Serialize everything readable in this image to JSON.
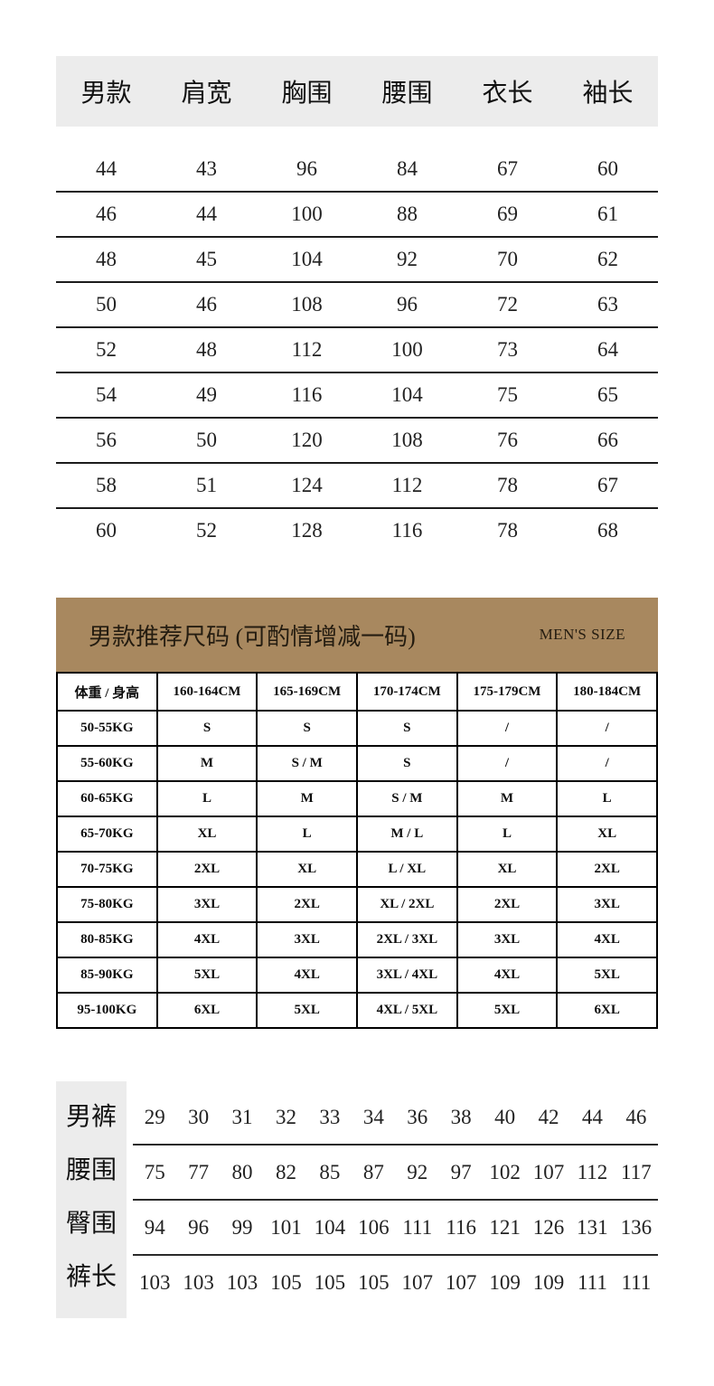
{
  "colors": {
    "page_bg": "#ffffff",
    "table_header_bg": "#ececec",
    "panel_bg": "#a8885f",
    "border": "#000000"
  },
  "top_table": {
    "headers": [
      "男款",
      "肩宽",
      "胸围",
      "腰围",
      "衣长",
      "袖长"
    ],
    "rows": [
      [
        "44",
        "43",
        "96",
        "84",
        "67",
        "60"
      ],
      [
        "46",
        "44",
        "100",
        "88",
        "69",
        "61"
      ],
      [
        "48",
        "45",
        "104",
        "92",
        "70",
        "62"
      ],
      [
        "50",
        "46",
        "108",
        "96",
        "72",
        "63"
      ],
      [
        "52",
        "48",
        "112",
        "100",
        "73",
        "64"
      ],
      [
        "54",
        "49",
        "116",
        "104",
        "75",
        "65"
      ],
      [
        "56",
        "50",
        "120",
        "108",
        "76",
        "66"
      ],
      [
        "58",
        "51",
        "124",
        "112",
        "78",
        "67"
      ],
      [
        "60",
        "52",
        "128",
        "116",
        "78",
        "68"
      ]
    ]
  },
  "size_panel": {
    "title": "男款推荐尺码 (可酌情增减一码)",
    "subtitle": "MEN'S SIZE",
    "table": {
      "headers": [
        "体重 / 身高",
        "160-164CM",
        "165-169CM",
        "170-174CM",
        "175-179CM",
        "180-184CM"
      ],
      "rows": [
        [
          "50-55KG",
          "S",
          "S",
          "S",
          "/",
          "/"
        ],
        [
          "55-60KG",
          "M",
          "S / M",
          "S",
          "/",
          "/"
        ],
        [
          "60-65KG",
          "L",
          "M",
          "S / M",
          "M",
          "L"
        ],
        [
          "65-70KG",
          "XL",
          "L",
          "M / L",
          "L",
          "XL"
        ],
        [
          "70-75KG",
          "2XL",
          "XL",
          "L / XL",
          "XL",
          "2XL"
        ],
        [
          "75-80KG",
          "3XL",
          "2XL",
          "XL / 2XL",
          "2XL",
          "3XL"
        ],
        [
          "80-85KG",
          "4XL",
          "3XL",
          "2XL / 3XL",
          "3XL",
          "4XL"
        ],
        [
          "85-90KG",
          "5XL",
          "4XL",
          "3XL / 4XL",
          "4XL",
          "5XL"
        ],
        [
          "95-100KG",
          "6XL",
          "5XL",
          "4XL / 5XL",
          "5XL",
          "6XL"
        ]
      ]
    }
  },
  "pants_table": {
    "rows": [
      {
        "label": "男裤",
        "values": [
          "29",
          "30",
          "31",
          "32",
          "33",
          "34",
          "36",
          "38",
          "40",
          "42",
          "44",
          "46"
        ]
      },
      {
        "label": "腰围",
        "values": [
          "75",
          "77",
          "80",
          "82",
          "85",
          "87",
          "92",
          "97",
          "102",
          "107",
          "112",
          "117"
        ]
      },
      {
        "label": "臀围",
        "values": [
          "94",
          "96",
          "99",
          "101",
          "104",
          "106",
          "111",
          "116",
          "121",
          "126",
          "131",
          "136"
        ]
      },
      {
        "label": "裤长",
        "values": [
          "103",
          "103",
          "103",
          "105",
          "105",
          "105",
          "107",
          "107",
          "109",
          "109",
          "111",
          "111"
        ]
      }
    ]
  }
}
